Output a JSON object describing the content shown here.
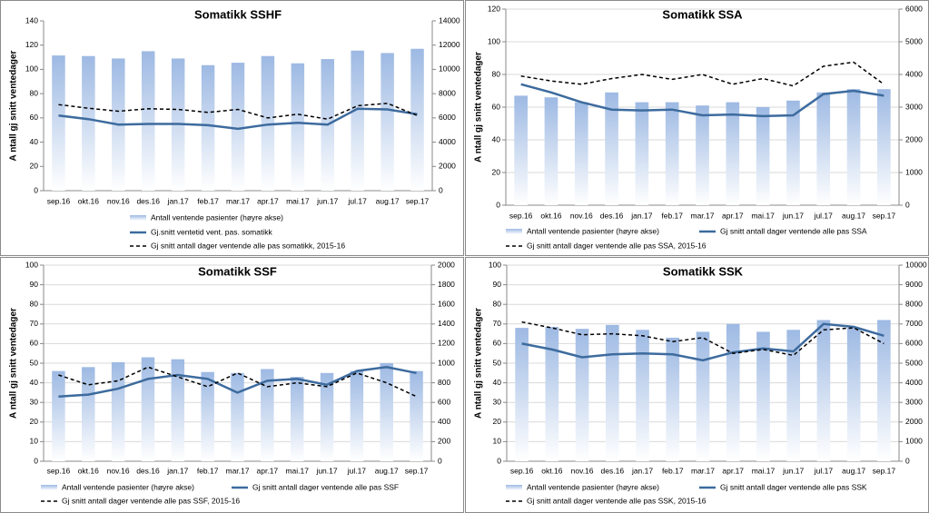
{
  "chart_data": [
    {
      "type": "combo",
      "title": "Somatikk SSHF",
      "ylabel": "A ntall gj snitt ventedager",
      "categories": [
        "sep.16",
        "okt.16",
        "nov.16",
        "des.16",
        "jan.17",
        "feb.17",
        "mar.17",
        "apr.17",
        "mai.17",
        "jun.17",
        "jul.17",
        "aug.17",
        "sep.17"
      ],
      "ylim": [
        0,
        140
      ],
      "yticks": [
        0,
        20,
        40,
        60,
        80,
        100,
        120,
        140
      ],
      "y2lim": [
        0,
        14000
      ],
      "y2ticks": [
        0,
        2000,
        4000,
        6000,
        8000,
        10000,
        12000,
        14000
      ],
      "grid": false,
      "series": [
        {
          "name": "Antall ventende pasienter (høyre akse)",
          "type": "bar",
          "axis": "y2",
          "color": "#9db9e3",
          "values": [
            11150,
            11100,
            10900,
            11500,
            10900,
            10350,
            10550,
            11100,
            10500,
            10850,
            11550,
            11350,
            11700
          ]
        },
        {
          "name": "Gj.snitt ventetid vent. pas. somatikk",
          "type": "line",
          "color": "#3d6b9e",
          "values": [
            62,
            59,
            54.5,
            55,
            55,
            54,
            51,
            54.5,
            56,
            54.5,
            67.5,
            67,
            63
          ]
        },
        {
          "name": "Gj snitt antall dager ventende alle pas somatikk, 2015-16",
          "type": "line",
          "dash": true,
          "color": "#000000",
          "values": [
            71,
            68,
            65.5,
            67.5,
            67,
            64.5,
            67,
            60,
            63,
            59,
            70,
            72,
            62
          ]
        }
      ]
    },
    {
      "type": "combo",
      "title": "Somatikk SSA",
      "ylabel": "A ntall gj snitt ventedager",
      "categories": [
        "sep.16",
        "okt.16",
        "nov.16",
        "des.16",
        "jan.17",
        "feb.17",
        "mar.17",
        "apr.17",
        "mai.17",
        "jun.17",
        "jul.17",
        "aug.17",
        "sep.17"
      ],
      "ylim": [
        0,
        120
      ],
      "yticks": [
        0,
        20,
        40,
        60,
        80,
        100,
        120
      ],
      "y2lim": [
        0,
        6000
      ],
      "y2ticks": [
        0,
        1000,
        2000,
        3000,
        4000,
        5000,
        6000
      ],
      "grid": true,
      "series": [
        {
          "name": "Antall ventende pasienter (høyre akse)",
          "type": "bar",
          "axis": "y2",
          "color": "#9db9e3",
          "values": [
            3350,
            3300,
            3150,
            3450,
            3150,
            3150,
            3050,
            3150,
            3000,
            3200,
            3450,
            3550,
            3550
          ]
        },
        {
          "name": "Gj snitt antall dager ventende alle pas SSA",
          "type": "line",
          "color": "#3d6b9e",
          "values": [
            74,
            69,
            63,
            58.5,
            58,
            58.5,
            55,
            55.5,
            54.5,
            55,
            68,
            70,
            67
          ]
        },
        {
          "name": "Gj snitt antall dager ventende alle pas SSA, 2015-16",
          "type": "line",
          "dash": true,
          "color": "#000000",
          "values": [
            79,
            76,
            74,
            77.5,
            80,
            77,
            80,
            74,
            77.5,
            73,
            85,
            87.5,
            74
          ]
        }
      ]
    },
    {
      "type": "combo",
      "title": "Somatikk SSF",
      "ylabel": "A ntall gj snitt ventedager",
      "categories": [
        "sep.16",
        "okt.16",
        "nov.16",
        "des.16",
        "jan.17",
        "feb.17",
        "mar.17",
        "apr.17",
        "mai.17",
        "jun.17",
        "jul.17",
        "aug.17",
        "sep.17"
      ],
      "ylim": [
        0,
        100
      ],
      "yticks": [
        0,
        10,
        20,
        30,
        40,
        50,
        60,
        70,
        80,
        90,
        100
      ],
      "y2lim": [
        0,
        2000
      ],
      "y2ticks": [
        0,
        200,
        400,
        600,
        800,
        1000,
        1200,
        1400,
        1600,
        1800,
        2000
      ],
      "grid": true,
      "series": [
        {
          "name": "Antall ventende pasienter (høyre akse)",
          "type": "bar",
          "axis": "y2",
          "color": "#9db9e3",
          "values": [
            920,
            960,
            1010,
            1060,
            1040,
            910,
            900,
            940,
            860,
            900,
            920,
            1000,
            920
          ]
        },
        {
          "name": "Gj snitt antall dager ventende alle pas SSF",
          "type": "line",
          "color": "#3d6b9e",
          "values": [
            33,
            34,
            37,
            42,
            44,
            42,
            35,
            41,
            42,
            39,
            46,
            48,
            45
          ]
        },
        {
          "name": "Gj snitt antall dager ventende alle pas SSF, 2015-16",
          "type": "line",
          "dash": true,
          "color": "#000000",
          "values": [
            44,
            39,
            41,
            48,
            43,
            38,
            45,
            38,
            40,
            38,
            45,
            40,
            33
          ]
        }
      ]
    },
    {
      "type": "combo",
      "title": "Somatikk SSK",
      "ylabel": "A ntall gj snitt ventedager",
      "categories": [
        "sep.16",
        "okt.16",
        "nov.16",
        "des.16",
        "jan.17",
        "feb.17",
        "mar.17",
        "apr.17",
        "mai.17",
        "jun.17",
        "jul.17",
        "aug.17",
        "sep.17"
      ],
      "ylim": [
        0,
        100
      ],
      "yticks": [
        0,
        10,
        20,
        30,
        40,
        50,
        60,
        70,
        80,
        90,
        100
      ],
      "y2lim": [
        0,
        10000
      ],
      "y2ticks": [
        0,
        1000,
        2000,
        3000,
        4000,
        5000,
        6000,
        7000,
        8000,
        9000,
        10000
      ],
      "grid": true,
      "series": [
        {
          "name": "Antall ventende pasienter (høyre akse)",
          "type": "bar",
          "axis": "y2",
          "color": "#9db9e3",
          "values": [
            6800,
            6850,
            6750,
            6950,
            6700,
            6300,
            6600,
            7000,
            6600,
            6700,
            7200,
            6800,
            7200
          ]
        },
        {
          "name": "Gj snitt antall dager ventende alle pas SSK",
          "type": "line",
          "color": "#3d6b9e",
          "values": [
            60,
            57,
            53,
            54.5,
            55,
            54.5,
            51.5,
            55.5,
            57.5,
            56,
            70,
            68.5,
            64
          ]
        },
        {
          "name": "Gj snitt antall dager ventende alle pas SSK, 2015-16",
          "type": "line",
          "dash": true,
          "color": "#000000",
          "values": [
            71,
            68,
            64.5,
            65,
            64,
            61,
            63,
            55,
            57,
            54,
            67,
            68,
            60
          ]
        }
      ]
    }
  ]
}
